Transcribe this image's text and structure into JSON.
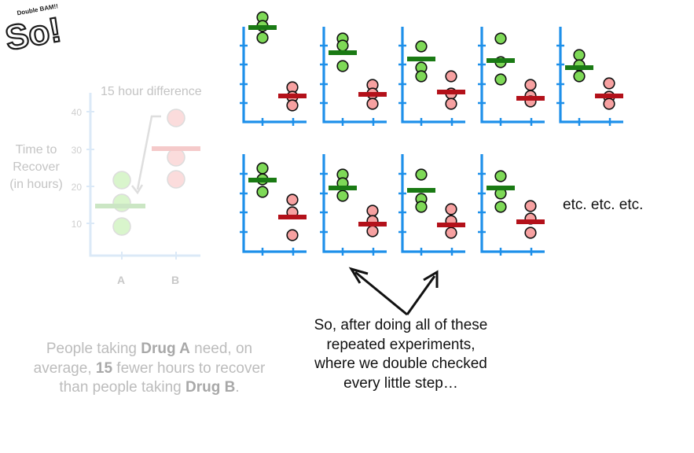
{
  "logo": {
    "text": "So!",
    "small_text": "Double BAM!!",
    "icon": "sq-logo-icon"
  },
  "faded_plot": {
    "y_axis_title": [
      "Time to",
      "Recover",
      "(in hours)"
    ],
    "y_ticks": [
      "40",
      "30",
      "20",
      "10"
    ],
    "categories": [
      "A",
      "B"
    ],
    "difference_label": "15 hour difference"
  },
  "faded_caption": {
    "pre_a": "People taking ",
    "drug_a": "Drug A",
    "mid_a": " need, on average, ",
    "num": "15",
    "mid_b": " fewer hours to recover than people taking ",
    "drug_b": "Drug B",
    "end": "."
  },
  "etc_text": "etc. etc. etc.",
  "caption": [
    "So, after doing all of these",
    "repeated experiments,",
    "where we double checked",
    "every little step…"
  ],
  "colors": {
    "axis_blue": "#1e90ea",
    "green_fill": "#7ed957",
    "green_bar": "#1a7a14",
    "red_fill": "#f7a1a1",
    "red_bar": "#b3111a"
  }
}
